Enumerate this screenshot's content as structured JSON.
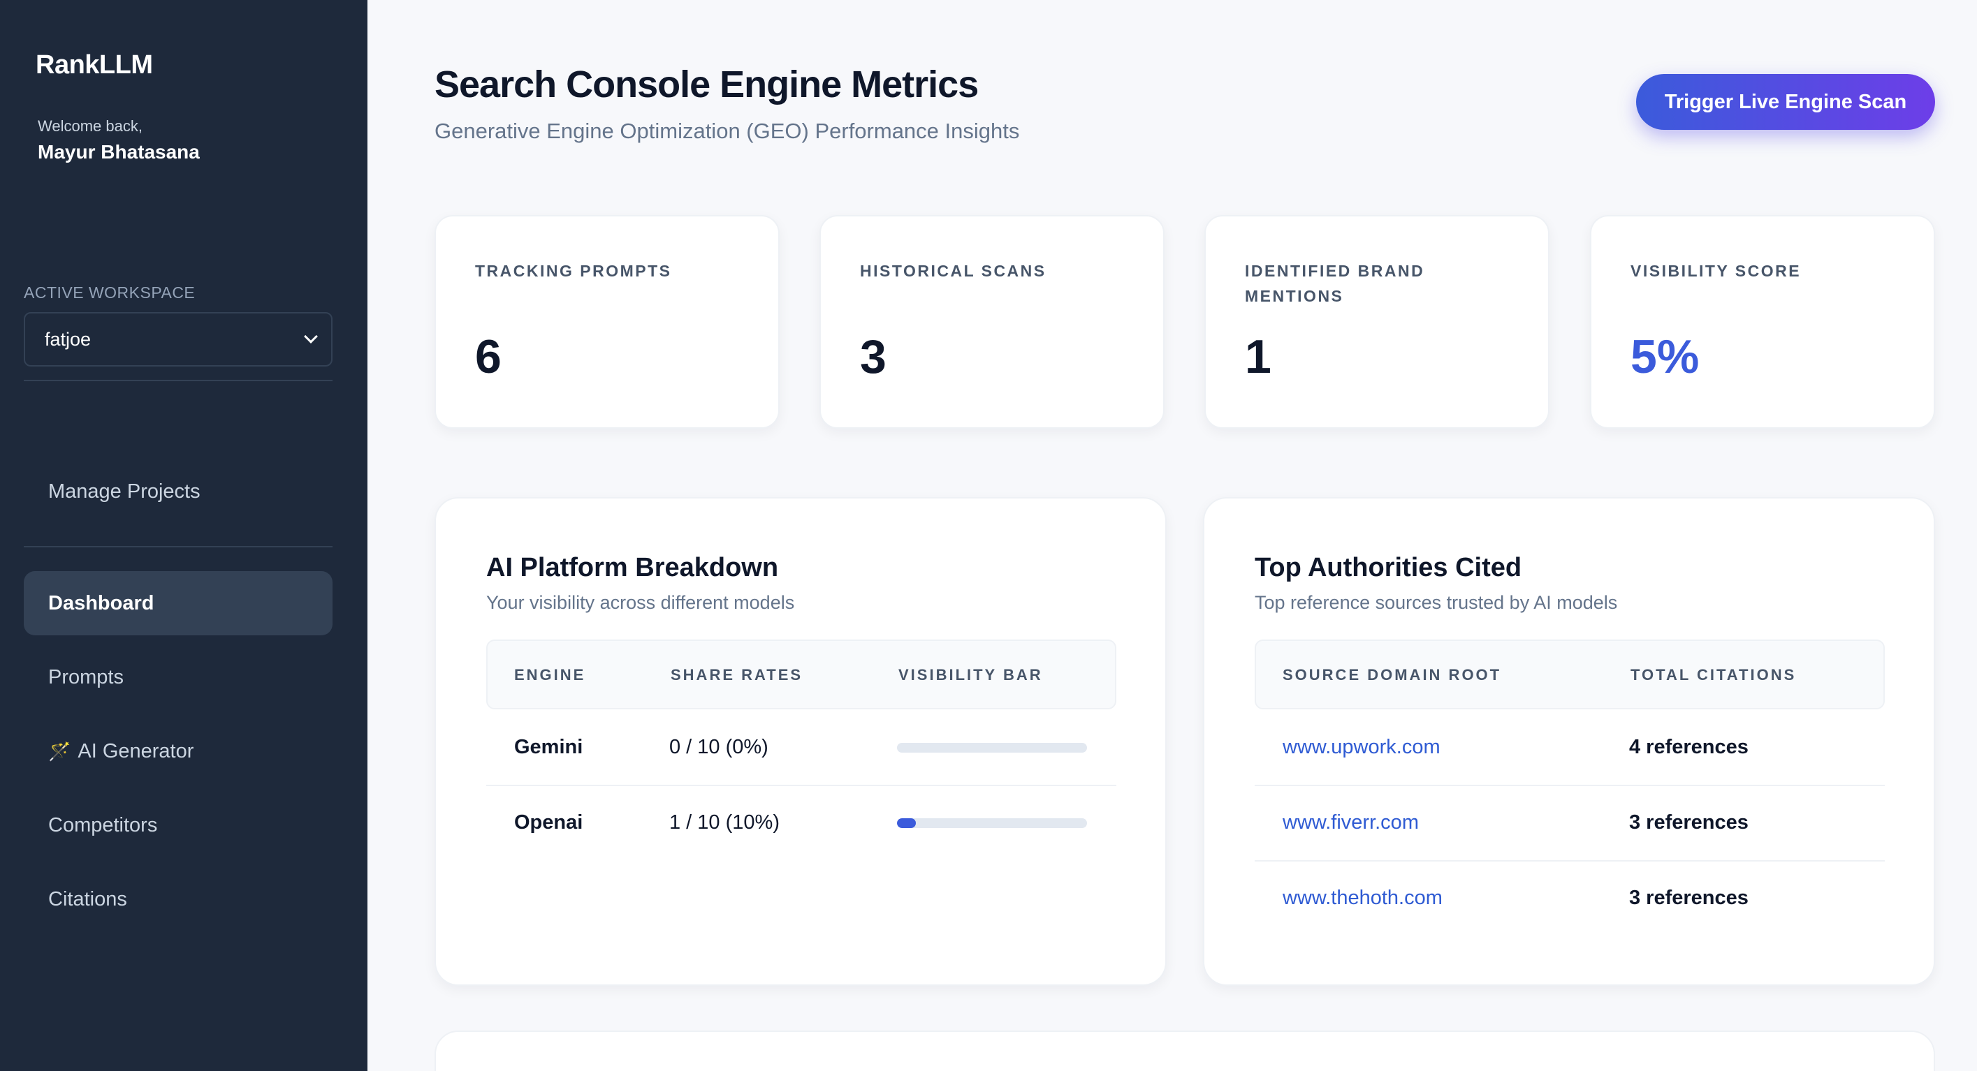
{
  "sidebar": {
    "brand": "RankLLM",
    "welcome": "Welcome back,",
    "username": "Mayur Bhatasana",
    "workspace_label": "ACTIVE WORKSPACE",
    "workspace_value": "fatjoe",
    "nav": {
      "manage_projects": "Manage Projects",
      "dashboard": "Dashboard",
      "prompts": "Prompts",
      "ai_generator": "AI Generator",
      "competitors": "Competitors",
      "citations": "Citations"
    },
    "ai_generator_icon": "magic-wand-icon"
  },
  "header": {
    "title": "Search Console Engine Metrics",
    "subtitle": "Generative Engine Optimization (GEO) Performance Insights",
    "scan_button": "Trigger Live Engine Scan"
  },
  "stats": [
    {
      "label": "TRACKING PROMPTS",
      "value": "6"
    },
    {
      "label": "HISTORICAL SCANS",
      "value": "3"
    },
    {
      "label": "IDENTIFIED BRAND MENTIONS",
      "value": "1"
    },
    {
      "label": "VISIBILITY SCORE",
      "value": "5%"
    }
  ],
  "platform_breakdown": {
    "title": "AI Platform Breakdown",
    "subtitle": "Your visibility across different models",
    "columns": [
      "ENGINE",
      "SHARE RATES",
      "VISIBILITY BAR"
    ],
    "rows": [
      {
        "engine": "Gemini",
        "share": "0 / 10 (0%)",
        "visibility": 0
      },
      {
        "engine": "Openai",
        "share": "1 / 10 (10%)",
        "visibility": 10
      }
    ]
  },
  "authorities": {
    "title": "Top Authorities Cited",
    "subtitle": "Top reference sources trusted by AI models",
    "columns": [
      "SOURCE DOMAIN ROOT",
      "TOTAL CITATIONS"
    ],
    "rows": [
      {
        "domain": "www.upwork.com",
        "citations": "4 references"
      },
      {
        "domain": "www.fiverr.com",
        "citations": "3 references"
      },
      {
        "domain": "www.thehoth.com",
        "citations": "3 references"
      }
    ]
  },
  "colors": {
    "sidebar_bg": "#1e293b",
    "accent": "#3b5bdb",
    "link": "#2f5bd3"
  }
}
